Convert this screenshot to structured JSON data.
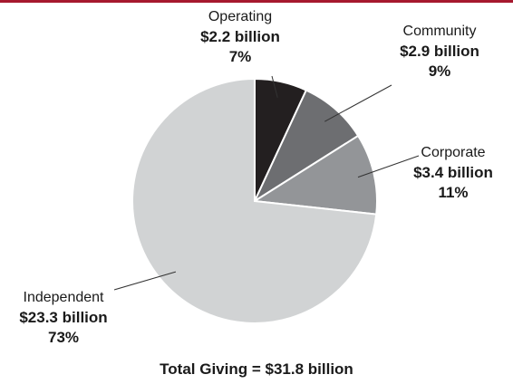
{
  "chart_data": {
    "type": "pie",
    "title": "Total Giving = $31.8 billion",
    "slices": [
      {
        "name": "Operating",
        "amount": "$2.2 billion",
        "percent_label": "7%",
        "value": 2.2,
        "color": "#231f20"
      },
      {
        "name": "Community",
        "amount": "$2.9 billion",
        "percent_label": "9%",
        "value": 2.9,
        "color": "#6d6e71"
      },
      {
        "name": "Corporate",
        "amount": "$3.4 billion",
        "percent_label": "11%",
        "value": 3.4,
        "color": "#939598"
      },
      {
        "name": "Independent",
        "amount": "$23.3 billion",
        "percent_label": "73%",
        "value": 23.3,
        "color": "#d1d3d4"
      }
    ],
    "start": "12 o'clock",
    "direction": "clockwise"
  },
  "colors": {
    "accent_rule": "#a6192e",
    "slice_border": "#ffffff",
    "leader_line": "#333333"
  }
}
